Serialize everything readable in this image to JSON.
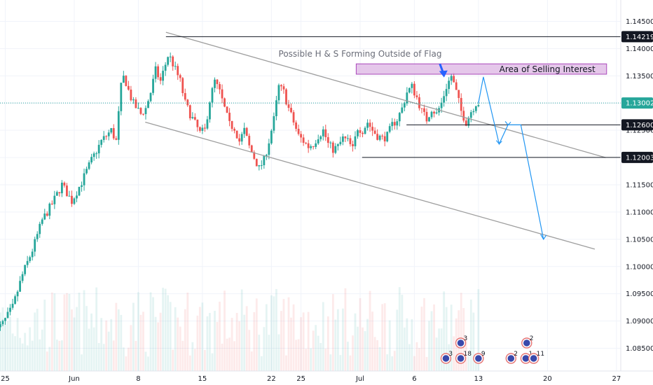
{
  "chart_data": {
    "type": "candlestick",
    "title": "",
    "annotation": "Possible H & S Forming Outside of Flag",
    "zone_label": "Area of Selling Interest",
    "y_axis": {
      "range": [
        1.083,
        1.15
      ],
      "ticks": [
        "1.14500",
        "1.14000",
        "1.13500",
        "1.13000",
        "1.12500",
        "1.12000",
        "1.11500",
        "1.11000",
        "1.10500",
        "1.10000",
        "1.09500",
        "1.09000",
        "1.08500"
      ],
      "tick_values": [
        1.145,
        1.14,
        1.135,
        1.13,
        1.125,
        1.12,
        1.115,
        1.11,
        1.105,
        1.1,
        1.095,
        1.09,
        1.085
      ],
      "position": "right"
    },
    "x_axis": {
      "ticks": [
        "25",
        "Jun",
        "8",
        "15",
        "22",
        "25",
        "Jul",
        "6",
        "13",
        "20",
        "27"
      ],
      "tick_days": [
        -6,
        1,
        7.5,
        14,
        21,
        24,
        30,
        35.5,
        42,
        49,
        56
      ]
    },
    "price_labels": [
      {
        "text": "1.14219",
        "value": 1.14219,
        "style": "dark"
      },
      {
        "text": "1.13002",
        "value": 1.13002,
        "style": "teal"
      },
      {
        "text": "1.12600",
        "value": 1.126,
        "style": "dark"
      },
      {
        "text": "1.12003",
        "value": 1.12003,
        "style": "dark"
      }
    ],
    "levels": [
      {
        "from_day": 10.3,
        "value": 1.14219
      },
      {
        "from_day": 34.7,
        "value": 1.126
      },
      {
        "from_day": 30.2,
        "value": 1.12003
      }
    ],
    "current_price": 1.13002,
    "selling_zone": {
      "from_day": 29.6,
      "to_day": 55,
      "low": 1.1353,
      "high": 1.1372
    },
    "channel_lines": [
      {
        "x1": 10.3,
        "y1": 1.143,
        "x2": 54.9,
        "y2": 1.12
      },
      {
        "x1": 8.2,
        "y1": 1.1265,
        "x2": 53.8,
        "y2": 1.1032
      }
    ],
    "projection_path": [
      {
        "day": 42.0,
        "value": 1.13
      },
      {
        "day": 42.5,
        "value": 1.1348
      },
      {
        "day": 44.1,
        "value": 1.1225
      },
      {
        "day": 45.0,
        "value": 1.126
      },
      {
        "day": 46.3,
        "value": 1.126
      },
      {
        "day": 48.6,
        "value": 1.105
      }
    ],
    "arrow": {
      "day": 38.3,
      "from": 1.1372,
      "to": 1.1347
    },
    "ohlc_anchors": [
      [
        -7,
        1.0875
      ],
      [
        -6,
        1.0895
      ],
      [
        -5,
        1.0925
      ],
      [
        -4,
        1.0985
      ],
      [
        -3,
        1.103
      ],
      [
        -2,
        1.1085
      ],
      [
        -1,
        1.1115
      ],
      [
        0,
        1.115
      ],
      [
        1,
        1.112
      ],
      [
        2,
        1.1155
      ],
      [
        3,
        1.1195
      ],
      [
        4,
        1.123
      ],
      [
        5,
        1.125
      ],
      [
        5.5,
        1.123
      ],
      [
        6,
        1.133
      ],
      [
        6.3,
        1.135
      ],
      [
        6.8,
        1.132
      ],
      [
        7.2,
        1.13
      ],
      [
        8,
        1.128
      ],
      [
        8.5,
        1.129
      ],
      [
        9,
        1.132
      ],
      [
        9.5,
        1.136
      ],
      [
        10,
        1.134
      ],
      [
        10.8,
        1.139
      ],
      [
        11.3,
        1.137
      ],
      [
        12,
        1.134
      ],
      [
        12.5,
        1.13
      ],
      [
        13,
        1.128
      ],
      [
        14,
        1.1245
      ],
      [
        14.5,
        1.125
      ],
      [
        15,
        1.1305
      ],
      [
        15.5,
        1.134
      ],
      [
        16,
        1.132
      ],
      [
        17,
        1.126
      ],
      [
        17.5,
        1.1255
      ],
      [
        18,
        1.123
      ],
      [
        18.5,
        1.125
      ],
      [
        19,
        1.122
      ],
      [
        19.5,
        1.12
      ],
      [
        20,
        1.118
      ],
      [
        20.5,
        1.1195
      ],
      [
        21,
        1.123
      ],
      [
        21.5,
        1.127
      ],
      [
        22,
        1.133
      ],
      [
        22.5,
        1.132
      ],
      [
        23,
        1.129
      ],
      [
        23.5,
        1.1265
      ],
      [
        24,
        1.124
      ],
      [
        24.5,
        1.123
      ],
      [
        25,
        1.122
      ],
      [
        25.5,
        1.1225
      ],
      [
        26,
        1.124
      ],
      [
        26.5,
        1.125
      ],
      [
        27,
        1.1225
      ],
      [
        27.5,
        1.1215
      ],
      [
        28,
        1.122
      ],
      [
        28.5,
        1.1235
      ],
      [
        29,
        1.123
      ],
      [
        29.5,
        1.1215
      ],
      [
        30,
        1.1255
      ],
      [
        30.5,
        1.125
      ],
      [
        31,
        1.1265
      ],
      [
        31.5,
        1.125
      ],
      [
        32,
        1.124
      ],
      [
        32.5,
        1.1235
      ],
      [
        33,
        1.124
      ],
      [
        33.5,
        1.126
      ],
      [
        34,
        1.127
      ],
      [
        34.5,
        1.129
      ],
      [
        35,
        1.132
      ],
      [
        35.5,
        1.133
      ],
      [
        36,
        1.131
      ],
      [
        36.5,
        1.1285
      ],
      [
        37,
        1.127
      ],
      [
        37.5,
        1.129
      ],
      [
        38,
        1.128
      ],
      [
        38.5,
        1.13
      ],
      [
        39,
        1.133
      ],
      [
        39.5,
        1.135
      ],
      [
        40,
        1.132
      ],
      [
        40.5,
        1.1285
      ],
      [
        41,
        1.1265
      ],
      [
        41.5,
        1.1285
      ],
      [
        42,
        1.13
      ]
    ],
    "events": [
      {
        "day": 40.2,
        "count": "3",
        "row": "top"
      },
      {
        "day": 46.9,
        "count": "2",
        "row": "top"
      },
      {
        "day": 38.7,
        "count": "3",
        "row": "bottom"
      },
      {
        "day": 40.2,
        "count": "18",
        "row": "bottom"
      },
      {
        "day": 42.0,
        "count": "9",
        "row": "bottom"
      },
      {
        "day": 45.3,
        "count": "2",
        "row": "bottom"
      },
      {
        "day": 46.8,
        "count": "1",
        "row": "bottom"
      },
      {
        "day": 47.6,
        "count": "11",
        "row": "bottom"
      }
    ],
    "colors": {
      "up": "#26a69a",
      "down": "#ef5350",
      "teal": "#26a69a",
      "zone": "#e1bee7",
      "zone_border": "#9c27b0",
      "arrow": "#2962ff",
      "projection": "#2196f3"
    }
  }
}
